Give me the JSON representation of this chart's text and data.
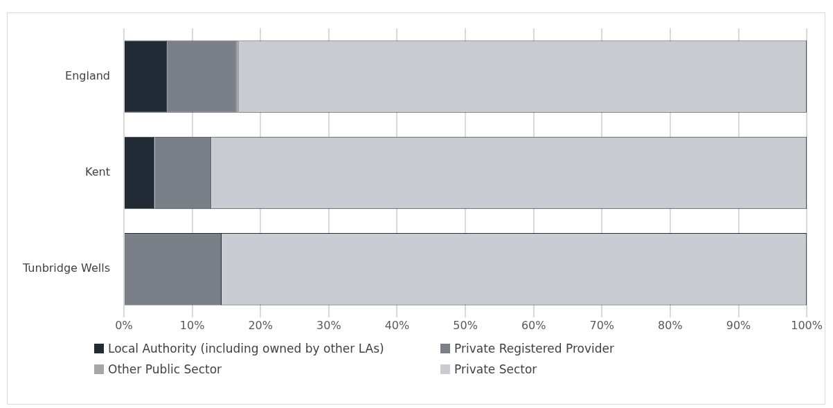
{
  "chart_data": {
    "type": "bar",
    "orientation": "horizontal",
    "stacked": true,
    "categories": [
      "England",
      "Kent",
      "Tunbridge Wells"
    ],
    "series": [
      {
        "name": "Local Authority (including owned by other LAs)",
        "color": "#222a35",
        "values": [
          6.3,
          4.5,
          0
        ]
      },
      {
        "name": "Private Registered Provider",
        "color": "#7b8088",
        "values": [
          10.2,
          8.3,
          14.3
        ]
      },
      {
        "name": "Other Public Sector",
        "color": "#a6a6a6",
        "values": [
          0.3,
          0,
          0
        ]
      },
      {
        "name": "Private Sector",
        "color": "#c9ccd0",
        "values": [
          83.2,
          87.2,
          85.7
        ]
      }
    ],
    "xlim": [
      0,
      100
    ],
    "xticks": [
      {
        "value": 0,
        "label": "0%"
      },
      {
        "value": 10,
        "label": "10%"
      },
      {
        "value": 20,
        "label": "20%"
      },
      {
        "value": 30,
        "label": "30%"
      },
      {
        "value": 40,
        "label": "40%"
      },
      {
        "value": 50,
        "label": "50%"
      },
      {
        "value": 60,
        "label": "60%"
      },
      {
        "value": 70,
        "label": "70%"
      },
      {
        "value": 80,
        "label": "80%"
      },
      {
        "value": 90,
        "label": "90%"
      },
      {
        "value": 100,
        "label": "100%"
      }
    ],
    "grid": "x",
    "legend": "bottom"
  }
}
